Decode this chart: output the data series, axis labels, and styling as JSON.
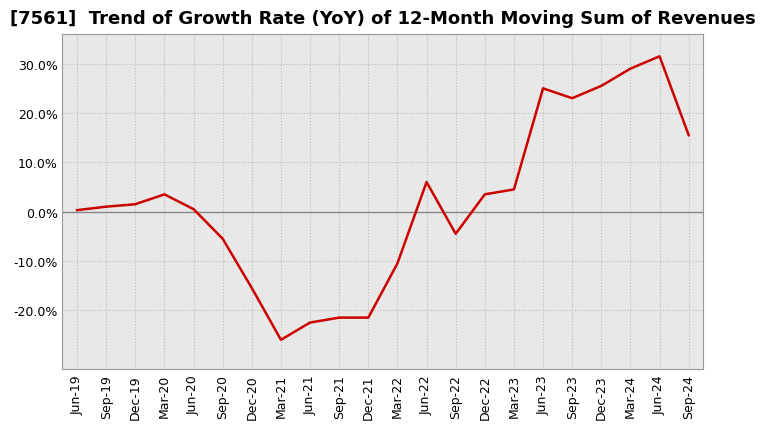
{
  "title": "[7561]  Trend of Growth Rate (YoY) of 12-Month Moving Sum of Revenues",
  "line_color": "#cc0000",
  "bg_color": "#ffffff",
  "plot_bg_color": "#e8e8e8",
  "grid_color": "#bbbbbb",
  "zero_line_color": "#888888",
  "xlabels": [
    "Jun-19",
    "Sep-19",
    "Dec-19",
    "Mar-20",
    "Jun-20",
    "Sep-20",
    "Dec-20",
    "Mar-21",
    "Jun-21",
    "Sep-21",
    "Dec-21",
    "Mar-22",
    "Jun-22",
    "Sep-22",
    "Dec-22",
    "Mar-23",
    "Jun-23",
    "Sep-23",
    "Dec-23",
    "Mar-24",
    "Jun-24",
    "Sep-24"
  ],
  "yvalues": [
    0.3,
    1.0,
    1.5,
    3.5,
    0.5,
    -5.5,
    -15.5,
    -26.0,
    -22.5,
    -21.5,
    -21.5,
    -10.5,
    6.0,
    -4.5,
    3.5,
    4.5,
    25.0,
    23.0,
    25.5,
    29.0,
    31.5,
    15.5
  ],
  "ylim": [
    -32,
    36
  ],
  "yticks": [
    -20.0,
    -10.0,
    0.0,
    10.0,
    20.0,
    30.0
  ],
  "title_fontsize": 13,
  "tick_fontsize": 9,
  "line_width": 1.8
}
